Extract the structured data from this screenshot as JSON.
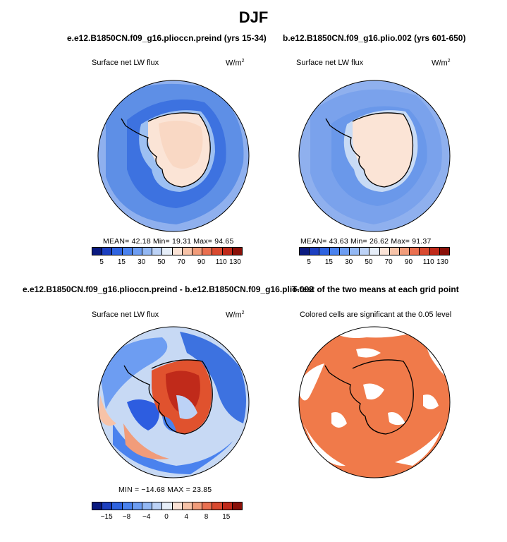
{
  "main_title": "DJF",
  "panels": {
    "p1": {
      "title": "e.e12.B1850CN.f09_g16.plioccn.preind (yrs 15-34)",
      "variable": "Surface net LW flux",
      "units": "W/m",
      "units_exp": "2",
      "stats": "MEAN=  42.18   Min=  19.31   Max=  94.65"
    },
    "p2": {
      "title": "b.e12.B1850CN.f09_g16.plio.002 (yrs 601-650)",
      "variable": "Surface net LW flux",
      "units": "W/m",
      "units_exp": "2",
      "stats": "MEAN=  43.63   Min=  26.62   Max=  91.37"
    },
    "p3": {
      "title": "e.e12.B1850CN.f09_g16.plioccn.preind - b.e12.B1850CN.f09_g16.plio.002",
      "variable": "Surface net LW flux",
      "units": "W/m",
      "units_exp": "2",
      "stats": "MIN = −14.68  MAX =  23.85"
    },
    "p4": {
      "title": "T-test of the two means at each grid point",
      "subtitle": "Colored cells are significant at the 0.05 level"
    }
  },
  "colorbar_abs": {
    "colors": [
      "#0a1a80",
      "#1c3fc0",
      "#2e63e0",
      "#4a82ee",
      "#6d9df2",
      "#93b8f4",
      "#bcd2f6",
      "#e6eef9",
      "#fbe3d6",
      "#f7c3a8",
      "#f19c7a",
      "#ea7050",
      "#d94a30",
      "#c02a1a",
      "#8a1008"
    ],
    "labels": [
      "5",
      "15",
      "30",
      "50",
      "70",
      "90",
      "110",
      "130"
    ]
  },
  "colorbar_diff": {
    "colors": [
      "#0a1a80",
      "#1c3fc0",
      "#2e63e0",
      "#4a82ee",
      "#6d9df2",
      "#93b8f4",
      "#bcd2f6",
      "#e6eef9",
      "#fbe3d6",
      "#f7c3a8",
      "#f19c7a",
      "#ea7050",
      "#d94a30",
      "#c02a1a",
      "#8a1008"
    ],
    "labels": [
      "−15",
      "−8",
      "−4",
      "0",
      "4",
      "8",
      "15"
    ]
  },
  "map_colors": {
    "ocean_abs_outer": "#8fb0ee",
    "ocean_abs_mid": "#5e8fe6",
    "ocean_abs_inner": "#3d72e0",
    "land_abs": "#fbe4d6",
    "ocean_diff": "#c7d9f4",
    "diff_blue": "#2d5de0",
    "diff_red": "#e0522e",
    "ttest_sig": "#f07a4a",
    "ttest_nonsig": "#ffffff"
  }
}
